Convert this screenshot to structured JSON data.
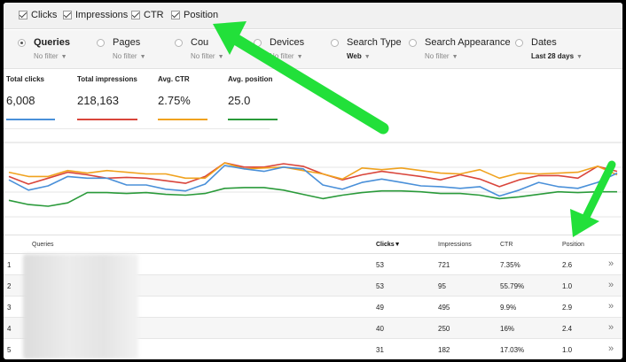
{
  "metrics": [
    {
      "label": "Clicks"
    },
    {
      "label": "Impressions"
    },
    {
      "label": "CTR"
    },
    {
      "label": "Position"
    }
  ],
  "group_by": [
    {
      "label": "Queries",
      "filter": "No filter",
      "active": true
    },
    {
      "label": "Pages",
      "filter": "No filter"
    },
    {
      "label": "Cou",
      "filter": "No filter"
    },
    {
      "label": "Devices",
      "filter": "No filter"
    },
    {
      "label": "Search Type",
      "filter": "Web"
    },
    {
      "label": "Search Appearance",
      "filter": "No filter"
    },
    {
      "label": "Dates",
      "filter": "Last 28 days"
    }
  ],
  "cards": [
    {
      "label": "Total clicks",
      "value": "6,008",
      "color": "#4a90d9"
    },
    {
      "label": "Total impressions",
      "value": "218,163",
      "color": "#d9453b"
    },
    {
      "label": "Avg. CTR",
      "value": "2.75%",
      "color": "#f0a21e"
    },
    {
      "label": "Avg. position",
      "value": "25.0",
      "color": "#2a9a3a"
    }
  ],
  "chart_data": {
    "type": "line",
    "series": [
      {
        "color": "#d9453b",
        "values": [
          60,
          51,
          58,
          65,
          62,
          58,
          59,
          58,
          55,
          52,
          60,
          76,
          71,
          71,
          75,
          72,
          63,
          56,
          62,
          66,
          63,
          60,
          56,
          62,
          57,
          48,
          56,
          61,
          61,
          58,
          72,
          66
        ]
      },
      {
        "color": "#f0a21e",
        "values": [
          65,
          60,
          60,
          67,
          64,
          67,
          65,
          63,
          63,
          58,
          58,
          76,
          69,
          70,
          71,
          67,
          63,
          57,
          70,
          68,
          70,
          67,
          64,
          63,
          68,
          58,
          64,
          63,
          64,
          65,
          72,
          62
        ]
      },
      {
        "color": "#4a90d9",
        "values": [
          56,
          44,
          49,
          60,
          58,
          58,
          50,
          50,
          45,
          43,
          51,
          73,
          69,
          66,
          71,
          69,
          50,
          45,
          53,
          57,
          53,
          49,
          48,
          46,
          48,
          37,
          44,
          53,
          48,
          46,
          53,
          64
        ]
      },
      {
        "color": "#2a9a3a",
        "values": [
          32,
          27,
          25,
          29,
          41,
          41,
          40,
          41,
          39,
          38,
          40,
          46,
          47,
          47,
          44,
          39,
          34,
          38,
          41,
          43,
          43,
          42,
          40,
          40,
          38,
          34,
          36,
          39,
          42,
          41,
          42,
          42
        ]
      }
    ]
  },
  "table": {
    "headers": {
      "query": "Queries",
      "clicks": "Clicks▼",
      "impressions": "Impressions",
      "ctr": "CTR",
      "position": "Position"
    },
    "rows": [
      {
        "index": "1",
        "clicks": "53",
        "impressions": "721",
        "ctr": "7.35%",
        "position": "2.6"
      },
      {
        "index": "2",
        "clicks": "53",
        "impressions": "95",
        "ctr": "55.79%",
        "position": "1.0"
      },
      {
        "index": "3",
        "clicks": "49",
        "impressions": "495",
        "ctr": "9.9%",
        "position": "2.9"
      },
      {
        "index": "4",
        "clicks": "40",
        "impressions": "250",
        "ctr": "16%",
        "position": "2.4"
      },
      {
        "index": "5",
        "clicks": "31",
        "impressions": "182",
        "ctr": "17.03%",
        "position": "1.0"
      }
    ],
    "row_action": "»"
  },
  "arrow_color": "#22e03a"
}
